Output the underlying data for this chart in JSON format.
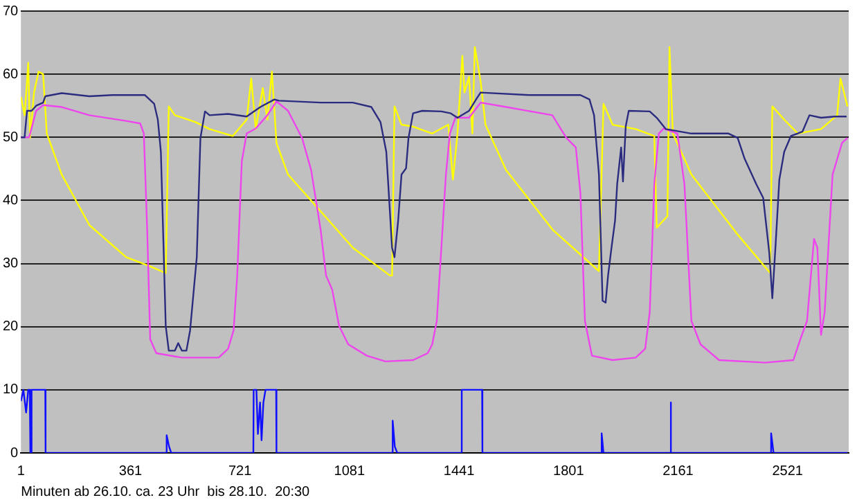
{
  "chart_data": {
    "type": "line",
    "xlabel": "Minuten ab 26.10. ca. 23 Uhr  bis 28.10.  20:30",
    "xlim": [
      1,
      2722
    ],
    "xticks": [
      1,
      361,
      721,
      1081,
      1441,
      1801,
      2161,
      2521
    ],
    "ylim": [
      0,
      70
    ],
    "yticks": [
      0,
      10,
      20,
      30,
      40,
      50,
      60,
      70
    ],
    "grid": "y",
    "legend": false,
    "marker": "none",
    "line_style": "solid",
    "series": [
      {
        "type": "line",
        "color": "#2b2b80",
        "x": [
          1,
          13,
          21,
          36,
          51,
          74,
          81,
          135,
          226,
          302,
          408,
          439,
          451,
          461,
          477,
          487,
          507,
          518,
          530,
          545,
          557,
          568,
          579,
          591,
          606,
          621,
          682,
          743,
          788,
          834,
          849,
          986,
          1092,
          1153,
          1183,
          1202,
          1221,
          1229,
          1241,
          1252,
          1267,
          1275,
          1290,
          1320,
          1383,
          1414,
          1436,
          1474,
          1497,
          1512,
          1672,
          1840,
          1870,
          1885,
          1901,
          1913,
          1923,
          1931,
          1943,
          1954,
          1961,
          1974,
          1980,
          1989,
          1999,
          2068,
          2091,
          2121,
          2205,
          2327,
          2357,
          2380,
          2418,
          2441,
          2461,
          2471,
          2482,
          2494,
          2510,
          2532,
          2570,
          2593,
          2631,
          2677,
          2715
        ],
        "values": [
          50,
          50,
          54.2,
          54.2,
          55,
          55.5,
          56.5,
          57,
          56.5,
          56.7,
          56.7,
          55.3,
          52.8,
          47.7,
          20.1,
          16.2,
          16.2,
          17.4,
          16.2,
          16.2,
          19.4,
          25.2,
          31,
          49.9,
          54.1,
          53.5,
          53.7,
          53.3,
          54.8,
          56,
          55.8,
          55.5,
          55.5,
          54.8,
          52.4,
          47.7,
          32.5,
          31,
          36.8,
          44.1,
          45.1,
          49.9,
          53.8,
          54.2,
          54.1,
          53.8,
          53.1,
          54.2,
          56,
          57.1,
          56.7,
          56.7,
          56,
          53.5,
          44.1,
          24.1,
          23.8,
          28.1,
          32.8,
          36.8,
          42.6,
          48.4,
          43,
          51.7,
          54.2,
          54.1,
          53.1,
          51.3,
          50.6,
          50.6,
          49.9,
          46.6,
          42.6,
          40.4,
          31.7,
          24.5,
          33.2,
          43.3,
          47.7,
          50.2,
          50.9,
          53.5,
          53.1,
          53.3,
          53.3
        ]
      },
      {
        "type": "line",
        "color": "#ee44ee",
        "x": [
          1,
          28,
          51,
          74,
          135,
          226,
          347,
          393,
          405,
          416,
          426,
          446,
          530,
          651,
          682,
          700,
          712,
          727,
          743,
          773,
          811,
          841,
          879,
          925,
          955,
          986,
          1004,
          1024,
          1047,
          1077,
          1138,
          1199,
          1290,
          1338,
          1353,
          1368,
          1383,
          1398,
          1411,
          1429,
          1474,
          1512,
          1596,
          1748,
          1771,
          1794,
          1825,
          1840,
          1855,
          1878,
          1946,
          2022,
          2053,
          2068,
          2083,
          2098,
          2114,
          2159,
          2182,
          2205,
          2235,
          2296,
          2448,
          2540,
          2563,
          2585,
          2608,
          2619,
          2631,
          2643,
          2669,
          2700,
          2718
        ],
        "values": [
          50,
          50,
          54.2,
          55.1,
          54.8,
          53.5,
          52.6,
          52.2,
          50.6,
          35.4,
          18,
          15.8,
          15.1,
          15.1,
          16.5,
          19.4,
          28.1,
          46.2,
          50.6,
          51.4,
          53.5,
          55.7,
          54.2,
          49.9,
          44.8,
          35.4,
          28.1,
          25.9,
          20.1,
          17.2,
          15.4,
          14.5,
          14.7,
          15.8,
          17.2,
          20.9,
          32.5,
          44.1,
          50.6,
          53.1,
          53.1,
          55.5,
          54.8,
          53.5,
          51.7,
          49.9,
          48.4,
          41.2,
          20.9,
          15.4,
          14.7,
          15.1,
          16.5,
          22.3,
          42.6,
          50.6,
          51.4,
          50.6,
          42.6,
          20.9,
          17.2,
          14.7,
          14.3,
          14.7,
          18,
          20.9,
          33.9,
          32.5,
          18.7,
          22.3,
          44.1,
          49.1,
          49.9
        ]
      },
      {
        "type": "line",
        "color": "#ffff00",
        "x": [
          1,
          13,
          25,
          31,
          44,
          59,
          74,
          86,
          135,
          226,
          347,
          423,
          477,
          487,
          507,
          575,
          621,
          697,
          743,
          758,
          773,
          796,
          811,
          826,
          841,
          879,
          986,
          1092,
          1214,
          1221,
          1229,
          1252,
          1290,
          1353,
          1406,
          1421,
          1436,
          1452,
          1459,
          1474,
          1485,
          1493,
          1512,
          1528,
          1596,
          1748,
          1901,
          1916,
          1946,
          2022,
          2083,
          2091,
          2126,
          2133,
          2144,
          2205,
          2357,
          2464,
          2471,
          2510,
          2555,
          2631,
          2684,
          2695,
          2718
        ],
        "values": [
          56.4,
          53.5,
          61.8,
          49.9,
          57.1,
          60.4,
          60,
          50.6,
          44.1,
          36.1,
          31,
          29.6,
          28.5,
          54.9,
          53.5,
          52.4,
          51.3,
          50.2,
          52.8,
          59.3,
          51.3,
          57.8,
          52.8,
          60.4,
          49.1,
          44.1,
          38.3,
          32.5,
          28.1,
          28.1,
          54.9,
          52,
          51.7,
          50.6,
          52,
          43.3,
          50.6,
          62.9,
          57.1,
          59.6,
          50.6,
          64.3,
          58.9,
          52,
          44.8,
          35.4,
          28.8,
          55.3,
          52,
          51.3,
          50.2,
          35.7,
          37.5,
          64.3,
          50.6,
          44.1,
          34.6,
          28.5,
          54.9,
          52.8,
          50.6,
          51.3,
          53.5,
          59.3,
          54.9
        ]
      },
      {
        "type": "line",
        "color": "#1010ff",
        "x": [
          1,
          9,
          18,
          25,
          30,
          32,
          34,
          36,
          81,
          82,
          479,
          480,
          488,
          495,
          765,
          766,
          775,
          780,
          787,
          792,
          798,
          805,
          840,
          841,
          1222,
          1223,
          1230,
          1238,
          1449,
          1450,
          1517,
          1518,
          1909,
          1910,
          1916,
          2136,
          2137,
          2138,
          2466,
          2467,
          2475,
          2718
        ],
        "values": [
          8.2,
          10,
          6.4,
          10,
          10,
          0,
          0,
          10,
          10,
          0,
          0,
          2.8,
          1,
          0,
          0,
          10,
          10,
          3,
          8,
          2,
          8,
          10,
          10,
          0,
          0,
          5.1,
          1,
          0,
          0,
          10,
          10,
          0,
          0,
          3.1,
          0,
          0,
          8,
          0,
          0,
          3.1,
          0,
          0
        ]
      }
    ]
  }
}
